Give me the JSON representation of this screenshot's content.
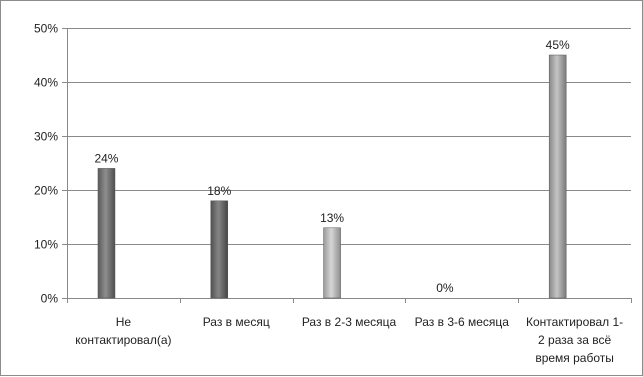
{
  "chart_data": {
    "type": "bar",
    "categories": [
      [
        "Не",
        "контактировал(а)"
      ],
      [
        "Раз в месяц"
      ],
      [
        "Раз в 2-3 месяца"
      ],
      [
        "Раз в 3-6 месяца"
      ],
      [
        "Контактировал 1-",
        "2 раза за всё",
        "время работы"
      ]
    ],
    "values": [
      24,
      18,
      13,
      0,
      45
    ],
    "data_labels": [
      "24%",
      "18%",
      "13%",
      "0%",
      "45%"
    ],
    "bar_colors": [
      "#7a7a7a",
      "#6e6e6e",
      "#b8b8b8",
      "#b8b8b8",
      "#a3a3a3"
    ],
    "title": "",
    "xlabel": "",
    "ylabel": "",
    "ylim": [
      0,
      50
    ],
    "yticks": [
      "0%",
      "10%",
      "20%",
      "30%",
      "40%",
      "50%"
    ],
    "grid": true,
    "legend": "none"
  }
}
